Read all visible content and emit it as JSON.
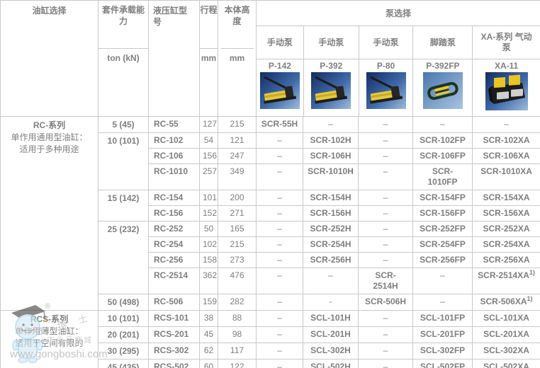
{
  "header": {
    "cylinder_selection": "油缸选择",
    "capacity_label": "套件承载能力",
    "capacity_unit": "ton (kN)",
    "model_label": "液压缸型号",
    "stroke_label": "行程",
    "stroke_unit": "mm",
    "height_label": "本体高度",
    "height_unit": "mm",
    "pump_selection": "泵选择",
    "pumps": [
      {
        "type": "手动泵",
        "model": "P-142",
        "image": "hand-pump"
      },
      {
        "type": "手动泵",
        "model": "P-392",
        "image": "hand-pump"
      },
      {
        "type": "手动泵",
        "model": "P-80",
        "image": "hand-pump"
      },
      {
        "type": "脚踏泵",
        "model": "P-392FP",
        "image": "foot-pump"
      },
      {
        "type": "XA-系列 气动泵",
        "model": "XA-11",
        "image": "air-pump"
      }
    ]
  },
  "table": {
    "sections": [
      {
        "series": "RC-系列",
        "desc1": "单作用通用型油缸：",
        "desc2": "适用于多种用途",
        "groups": [
          {
            "capacity": "5 (45)",
            "rows": [
              {
                "model": "RC-55",
                "stroke": "127",
                "height": "215",
                "pumps": [
                  "SCR-55H",
                  "–",
                  "–",
                  "–",
                  "–"
                ]
              }
            ]
          },
          {
            "capacity": "10 (101)",
            "rows": [
              {
                "model": "RC-102",
                "stroke": "54",
                "height": "121",
                "pumps": [
                  "–",
                  "SCR-102H",
                  "–",
                  "SCR-102FP",
                  "SCR-102XA"
                ]
              },
              {
                "model": "RC-106",
                "stroke": "156",
                "height": "247",
                "pumps": [
                  "–",
                  "SCR-106H",
                  "–",
                  "SCR-106FP",
                  "SCR-106XA"
                ]
              },
              {
                "model": "RC-1010",
                "stroke": "257",
                "height": "349",
                "pumps": [
                  "–",
                  "SCR-1010H",
                  "–",
                  "SCR-1010FP",
                  "SCR-1010XA"
                ]
              }
            ]
          },
          {
            "capacity": "15 (142)",
            "rows": [
              {
                "model": "RC-154",
                "stroke": "101",
                "height": "200",
                "pumps": [
                  "–",
                  "SCR-154H",
                  "–",
                  "SCR-154FP",
                  "SCR-154XA"
                ]
              },
              {
                "model": "RC-156",
                "stroke": "152",
                "height": "271",
                "pumps": [
                  "–",
                  "SCR-156H",
                  "–",
                  "SCR-156FP",
                  "SCR-156XA"
                ]
              }
            ]
          },
          {
            "capacity": "25 (232)",
            "rows": [
              {
                "model": "RC-252",
                "stroke": "50",
                "height": "165",
                "pumps": [
                  "–",
                  "SCR-252H",
                  "–",
                  "SCR-252FP",
                  "SCR-252XA"
                ]
              },
              {
                "model": "RC-254",
                "stroke": "102",
                "height": "215",
                "pumps": [
                  "–",
                  "SCR-254H",
                  "–",
                  "SCR-254FP",
                  "SCR-254XA"
                ]
              },
              {
                "model": "RC-256",
                "stroke": "158",
                "height": "273",
                "pumps": [
                  "–",
                  "SCR-256H",
                  "–",
                  "SCR-256FP",
                  "SCR-256XA"
                ]
              },
              {
                "model": "RC-2514",
                "stroke": "362",
                "height": "476",
                "pumps": [
                  "–",
                  "–",
                  "SCR-2514H",
                  "–",
                  "SCR-2514XA^1)"
                ]
              }
            ]
          },
          {
            "capacity": "50 (498)",
            "rows": [
              {
                "model": "RC-506",
                "stroke": "159",
                "height": "282",
                "pumps": [
                  "–",
                  "-",
                  "SCR-506H",
                  "–",
                  "SCR-506XA^1)"
                ]
              }
            ]
          }
        ]
      },
      {
        "series": "RCS-系列",
        "desc1": "单作用薄型油缸：",
        "desc2": "适用于空间有限的",
        "groups": [
          {
            "capacity": "10 (101)",
            "rows": [
              {
                "model": "RCS-101",
                "stroke": "38",
                "height": "88",
                "pumps": [
                  "–",
                  "SCL-101H",
                  "–",
                  "SCL-101FP",
                  "SCL-101XA"
                ]
              }
            ]
          },
          {
            "capacity": "20 (201)",
            "rows": [
              {
                "model": "RCS-201",
                "stroke": "45",
                "height": "98",
                "pumps": [
                  "–",
                  "SCL-201H",
                  "–",
                  "SCL-201FP",
                  "SCL-201XA"
                ]
              }
            ]
          },
          {
            "capacity": "30 (295)",
            "rows": [
              {
                "model": "RCS-302",
                "stroke": "62",
                "height": "117",
                "pumps": [
                  "–",
                  "SCL-302H",
                  "–",
                  "SCL-302FP",
                  "SCL-302XA"
                ]
              }
            ]
          },
          {
            "capacity": "45 (435)",
            "rows": [
              {
                "model": "RCS-502",
                "stroke": "60",
                "height": "122",
                "pumps": [
                  "–",
                  "SCL-502H",
                  "–",
                  "SCL-502FP",
                  "SCL-502XA"
                ]
              }
            ]
          }
        ]
      }
    ]
  },
  "watermark": {
    "reg_mark": "®",
    "brand": "工 博 士",
    "mall": "工业品商城",
    "url": "www.gongboshi.com",
    "mascot_icon": "graduate-mascot-icon"
  },
  "colors": {
    "border": "#c9c9c9",
    "text": "#7f7f7f",
    "pump_yellow": "#e6c93a",
    "pump_bg_dark_blue": "#16336e",
    "pump_bg_light_blue": "#85aed6",
    "watermark_gray": "#c6c6c6"
  }
}
